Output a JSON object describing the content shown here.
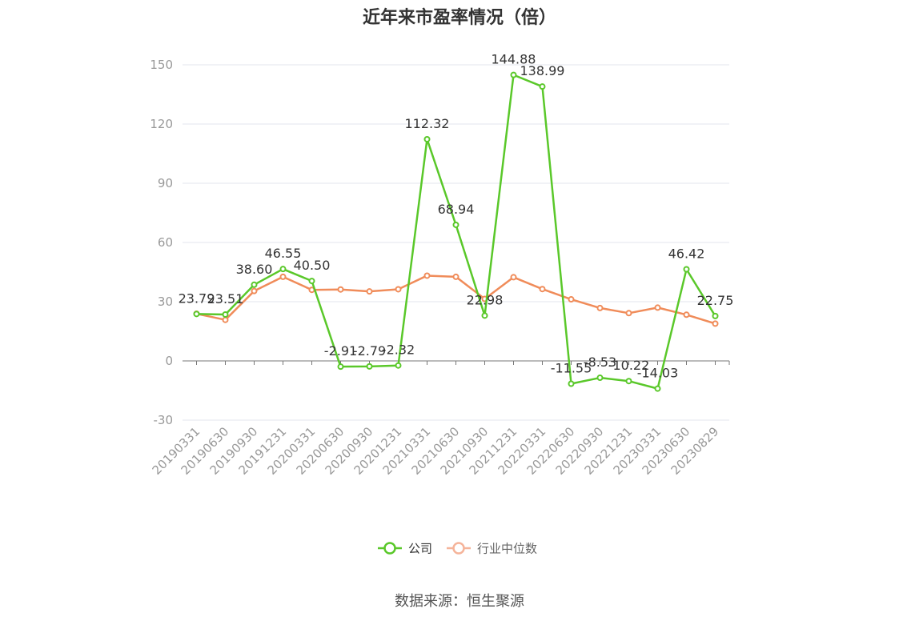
{
  "chart_data": {
    "type": "line",
    "title": "近年来市盈率情况（倍）",
    "categories": [
      "20190331",
      "20190630",
      "20190930",
      "20191231",
      "20200331",
      "20200630",
      "20200930",
      "20201231",
      "20210331",
      "20210630",
      "20210930",
      "20211231",
      "20220331",
      "20220630",
      "20220930",
      "20221231",
      "20230331",
      "20230630",
      "20230829"
    ],
    "series": [
      {
        "name": "公司",
        "color": "#5ac82a",
        "values": [
          23.79,
          23.51,
          38.6,
          46.55,
          40.5,
          -2.91,
          -2.79,
          -2.32,
          112.32,
          68.94,
          22.98,
          144.88,
          138.99,
          -11.55,
          -8.53,
          -10.22,
          -14.03,
          46.42,
          22.75
        ],
        "labels": [
          "23.79",
          "23.51",
          "38.60",
          "46.55",
          "40.50",
          "-2.91",
          "-2.79",
          "-2.32",
          "112.32",
          "68.94",
          "22.98",
          "144.88",
          "138.99",
          "-11.55",
          "-8.53",
          "-10.22",
          "-14.03",
          "46.42",
          "22.75"
        ]
      },
      {
        "name": "行业中位数",
        "color": "#f08c5a",
        "values": [
          23.9,
          20.8,
          35.4,
          42.6,
          36.0,
          36.2,
          35.2,
          36.3,
          43.2,
          42.6,
          31.4,
          42.4,
          36.4,
          31.2,
          26.8,
          24.2,
          27.0,
          23.4,
          18.9
        ]
      }
    ],
    "yticks": [
      150,
      120,
      90,
      60,
      30,
      0,
      -30
    ],
    "ylim": [
      -30,
      150
    ],
    "xlabel": "",
    "ylabel": "",
    "grid": true,
    "legend": "bottom-center"
  },
  "source_text": "数据来源：恒生聚源"
}
